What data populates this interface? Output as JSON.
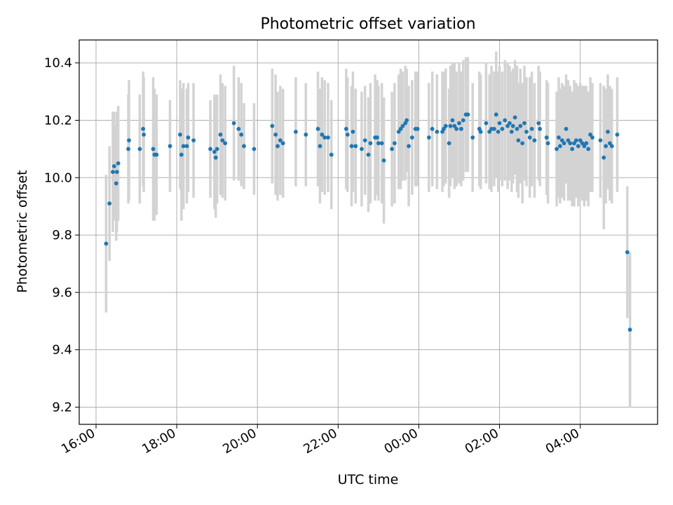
{
  "chart_data": {
    "type": "scatter",
    "title": "Photometric offset variation",
    "xlabel": "UTC time",
    "ylabel": "Photometric offset",
    "xlim": [
      "15:35",
      "05:55 (+1d)"
    ],
    "ylim": [
      9.14,
      10.48
    ],
    "grid": true,
    "xticks": [
      {
        "t": "16:00",
        "label": "16:00"
      },
      {
        "t": "18:00",
        "label": "18:00"
      },
      {
        "t": "20:00",
        "label": "20:00"
      },
      {
        "t": "22:00",
        "label": "22:00"
      },
      {
        "t": "00:00 (+1d)",
        "label": "00:00"
      },
      {
        "t": "02:00 (+1d)",
        "label": "02:00"
      },
      {
        "t": "04:00 (+1d)",
        "label": "04:00"
      }
    ],
    "yticks": [
      9.2,
      9.4,
      9.6,
      9.8,
      10.0,
      10.2,
      10.4
    ],
    "marker_color": "#1f77b4",
    "errorbar_color": "#d3d3d3",
    "points": [
      {
        "t": "16:15",
        "y": 9.77,
        "err": 0.24
      },
      {
        "t": "16:20",
        "y": 9.91,
        "err": 0.2
      },
      {
        "t": "16:25",
        "y": 10.02,
        "err": 0.21
      },
      {
        "t": "16:27",
        "y": 10.04,
        "err": 0.19
      },
      {
        "t": "16:30",
        "y": 9.98,
        "err": 0.2
      },
      {
        "t": "16:31",
        "y": 10.02,
        "err": 0.21
      },
      {
        "t": "16:33",
        "y": 10.05,
        "err": 0.2
      },
      {
        "t": "16:48",
        "y": 10.1,
        "err": 0.19
      },
      {
        "t": "16:49",
        "y": 10.13,
        "err": 0.21
      },
      {
        "t": "17:05",
        "y": 10.1,
        "err": 0.19
      },
      {
        "t": "17:10",
        "y": 10.17,
        "err": 0.2
      },
      {
        "t": "17:11",
        "y": 10.15,
        "err": 0.2
      },
      {
        "t": "17:25",
        "y": 10.1,
        "err": 0.25
      },
      {
        "t": "17:27",
        "y": 10.08,
        "err": 0.23
      },
      {
        "t": "17:30",
        "y": 10.08,
        "err": 0.21
      },
      {
        "t": "17:50",
        "y": 10.11,
        "err": 0.16
      },
      {
        "t": "18:05",
        "y": 10.15,
        "err": 0.19
      },
      {
        "t": "18:07",
        "y": 10.08,
        "err": 0.23
      },
      {
        "t": "18:10",
        "y": 10.11,
        "err": 0.22
      },
      {
        "t": "18:15",
        "y": 10.11,
        "err": 0.2
      },
      {
        "t": "18:17",
        "y": 10.14,
        "err": 0.19
      },
      {
        "t": "18:25",
        "y": 10.13,
        "err": 0.2
      },
      {
        "t": "18:50",
        "y": 10.1,
        "err": 0.17
      },
      {
        "t": "18:56",
        "y": 10.09,
        "err": 0.2
      },
      {
        "t": "18:58",
        "y": 10.07,
        "err": 0.21
      },
      {
        "t": "19:00",
        "y": 10.1,
        "err": 0.19
      },
      {
        "t": "19:05",
        "y": 10.15,
        "err": 0.21
      },
      {
        "t": "19:08",
        "y": 10.13,
        "err": 0.2
      },
      {
        "t": "19:12",
        "y": 10.12,
        "err": 0.2
      },
      {
        "t": "19:25",
        "y": 10.19,
        "err": 0.2
      },
      {
        "t": "19:32",
        "y": 10.17,
        "err": 0.18
      },
      {
        "t": "19:36",
        "y": 10.15,
        "err": 0.18
      },
      {
        "t": "19:40",
        "y": 10.11,
        "err": 0.15
      },
      {
        "t": "19:55",
        "y": 10.1,
        "err": 0.16
      },
      {
        "t": "20:22",
        "y": 10.18,
        "err": 0.2
      },
      {
        "t": "20:27",
        "y": 10.15,
        "err": 0.21
      },
      {
        "t": "20:30",
        "y": 10.11,
        "err": 0.19
      },
      {
        "t": "20:34",
        "y": 10.13,
        "err": 0.19
      },
      {
        "t": "20:38",
        "y": 10.12,
        "err": 0.19
      },
      {
        "t": "20:57",
        "y": 10.16,
        "err": 0.19
      },
      {
        "t": "21:12",
        "y": 10.15,
        "err": 0.18
      },
      {
        "t": "21:30",
        "y": 10.17,
        "err": 0.2
      },
      {
        "t": "21:33",
        "y": 10.11,
        "err": 0.2
      },
      {
        "t": "21:36",
        "y": 10.15,
        "err": 0.2
      },
      {
        "t": "21:40",
        "y": 10.14,
        "err": 0.2
      },
      {
        "t": "21:45",
        "y": 10.14,
        "err": 0.19
      },
      {
        "t": "21:50",
        "y": 10.08,
        "err": 0.19
      },
      {
        "t": "22:12",
        "y": 10.17,
        "err": 0.21
      },
      {
        "t": "22:14",
        "y": 10.15,
        "err": 0.2
      },
      {
        "t": "22:20",
        "y": 10.11,
        "err": 0.21
      },
      {
        "t": "22:22",
        "y": 10.16,
        "err": 0.21
      },
      {
        "t": "22:26",
        "y": 10.11,
        "err": 0.2
      },
      {
        "t": "22:35",
        "y": 10.1,
        "err": 0.2
      },
      {
        "t": "22:40",
        "y": 10.13,
        "err": 0.19
      },
      {
        "t": "22:45",
        "y": 10.08,
        "err": 0.2
      },
      {
        "t": "22:48",
        "y": 10.12,
        "err": 0.21
      },
      {
        "t": "22:55",
        "y": 10.14,
        "err": 0.22
      },
      {
        "t": "22:58",
        "y": 10.14,
        "err": 0.2
      },
      {
        "t": "23:00",
        "y": 10.12,
        "err": 0.2
      },
      {
        "t": "23:05",
        "y": 10.12,
        "err": 0.21
      },
      {
        "t": "23:08",
        "y": 10.06,
        "err": 0.22
      },
      {
        "t": "23:20",
        "y": 10.1,
        "err": 0.2
      },
      {
        "t": "23:24",
        "y": 10.12,
        "err": 0.21
      },
      {
        "t": "23:30",
        "y": 10.16,
        "err": 0.2
      },
      {
        "t": "23:33",
        "y": 10.17,
        "err": 0.21
      },
      {
        "t": "23:36",
        "y": 10.18,
        "err": 0.19
      },
      {
        "t": "23:40",
        "y": 10.19,
        "err": 0.2
      },
      {
        "t": "23:42",
        "y": 10.2,
        "err": 0.18
      },
      {
        "t": "23:45",
        "y": 10.11,
        "err": 0.21
      },
      {
        "t": "23:50",
        "y": 10.14,
        "err": 0.2
      },
      {
        "t": "23:55",
        "y": 10.17,
        "err": 0.2
      },
      {
        "t": "23:58",
        "y": 10.17,
        "err": 0.2
      },
      {
        "t": "00:15 (+1d)",
        "y": 10.14,
        "err": 0.19
      },
      {
        "t": "00:20 (+1d)",
        "y": 10.17,
        "err": 0.2
      },
      {
        "t": "00:27 (+1d)",
        "y": 10.16,
        "err": 0.2
      },
      {
        "t": "00:35 (+1d)",
        "y": 10.16,
        "err": 0.21
      },
      {
        "t": "00:37 (+1d)",
        "y": 10.17,
        "err": 0.2
      },
      {
        "t": "00:40 (+1d)",
        "y": 10.18,
        "err": 0.2
      },
      {
        "t": "00:45 (+1d)",
        "y": 10.12,
        "err": 0.19
      },
      {
        "t": "00:47 (+1d)",
        "y": 10.18,
        "err": 0.21
      },
      {
        "t": "00:50 (+1d)",
        "y": 10.2,
        "err": 0.2
      },
      {
        "t": "00:53 (+1d)",
        "y": 10.18,
        "err": 0.22
      },
      {
        "t": "00:56 (+1d)",
        "y": 10.17,
        "err": 0.2
      },
      {
        "t": "01:00 (+1d)",
        "y": 10.19,
        "err": 0.21
      },
      {
        "t": "01:03 (+1d)",
        "y": 10.17,
        "err": 0.2
      },
      {
        "t": "01:06 (+1d)",
        "y": 10.2,
        "err": 0.21
      },
      {
        "t": "01:10 (+1d)",
        "y": 10.22,
        "err": 0.2
      },
      {
        "t": "01:13 (+1d)",
        "y": 10.22,
        "err": 0.2
      },
      {
        "t": "01:20 (+1d)",
        "y": 10.14,
        "err": 0.19
      },
      {
        "t": "01:30 (+1d)",
        "y": 10.17,
        "err": 0.2
      },
      {
        "t": "01:32 (+1d)",
        "y": 10.16,
        "err": 0.2
      },
      {
        "t": "01:40 (+1d)",
        "y": 10.19,
        "err": 0.21
      },
      {
        "t": "01:45 (+1d)",
        "y": 10.16,
        "err": 0.2
      },
      {
        "t": "01:48 (+1d)",
        "y": 10.17,
        "err": 0.22
      },
      {
        "t": "01:52 (+1d)",
        "y": 10.17,
        "err": 0.2
      },
      {
        "t": "01:55 (+1d)",
        "y": 10.22,
        "err": 0.22
      },
      {
        "t": "01:58 (+1d)",
        "y": 10.16,
        "err": 0.21
      },
      {
        "t": "02:00 (+1d)",
        "y": 10.19,
        "err": 0.2
      },
      {
        "t": "02:04 (+1d)",
        "y": 10.17,
        "err": 0.2
      },
      {
        "t": "02:08 (+1d)",
        "y": 10.2,
        "err": 0.21
      },
      {
        "t": "02:12 (+1d)",
        "y": 10.18,
        "err": 0.22
      },
      {
        "t": "02:15 (+1d)",
        "y": 10.19,
        "err": 0.2
      },
      {
        "t": "02:18 (+1d)",
        "y": 10.16,
        "err": 0.21
      },
      {
        "t": "02:20 (+1d)",
        "y": 10.18,
        "err": 0.2
      },
      {
        "t": "02:23 (+1d)",
        "y": 10.21,
        "err": 0.2
      },
      {
        "t": "02:26 (+1d)",
        "y": 10.17,
        "err": 0.22
      },
      {
        "t": "02:28 (+1d)",
        "y": 10.13,
        "err": 0.2
      },
      {
        "t": "02:31 (+1d)",
        "y": 10.18,
        "err": 0.2
      },
      {
        "t": "02:34 (+1d)",
        "y": 10.12,
        "err": 0.21
      },
      {
        "t": "02:37 (+1d)",
        "y": 10.19,
        "err": 0.2
      },
      {
        "t": "02:40 (+1d)",
        "y": 10.16,
        "err": 0.19
      },
      {
        "t": "02:45 (+1d)",
        "y": 10.14,
        "err": 0.21
      },
      {
        "t": "02:48 (+1d)",
        "y": 10.17,
        "err": 0.2
      },
      {
        "t": "02:52 (+1d)",
        "y": 10.13,
        "err": 0.2
      },
      {
        "t": "02:58 (+1d)",
        "y": 10.19,
        "err": 0.2
      },
      {
        "t": "03:00 (+1d)",
        "y": 10.17,
        "err": 0.2
      },
      {
        "t": "03:10 (+1d)",
        "y": 10.14,
        "err": 0.2
      },
      {
        "t": "03:12 (+1d)",
        "y": 10.12,
        "err": 0.21
      },
      {
        "t": "03:25 (+1d)",
        "y": 10.1,
        "err": 0.2
      },
      {
        "t": "03:28 (+1d)",
        "y": 10.14,
        "err": 0.21
      },
      {
        "t": "03:30 (+1d)",
        "y": 10.11,
        "err": 0.2
      },
      {
        "t": "03:33 (+1d)",
        "y": 10.13,
        "err": 0.2
      },
      {
        "t": "03:36 (+1d)",
        "y": 10.12,
        "err": 0.2
      },
      {
        "t": "03:39 (+1d)",
        "y": 10.17,
        "err": 0.19
      },
      {
        "t": "03:42 (+1d)",
        "y": 10.13,
        "err": 0.21
      },
      {
        "t": "03:45 (+1d)",
        "y": 10.12,
        "err": 0.2
      },
      {
        "t": "03:48 (+1d)",
        "y": 10.1,
        "err": 0.2
      },
      {
        "t": "03:51 (+1d)",
        "y": 10.12,
        "err": 0.22
      },
      {
        "t": "03:54 (+1d)",
        "y": 10.13,
        "err": 0.2
      },
      {
        "t": "03:57 (+1d)",
        "y": 10.11,
        "err": 0.21
      },
      {
        "t": "04:00 (+1d)",
        "y": 10.13,
        "err": 0.2
      },
      {
        "t": "04:03 (+1d)",
        "y": 10.12,
        "err": 0.2
      },
      {
        "t": "04:06 (+1d)",
        "y": 10.11,
        "err": 0.21
      },
      {
        "t": "04:09 (+1d)",
        "y": 10.12,
        "err": 0.2
      },
      {
        "t": "04:12 (+1d)",
        "y": 10.1,
        "err": 0.2
      },
      {
        "t": "04:15 (+1d)",
        "y": 10.15,
        "err": 0.2
      },
      {
        "t": "04:18 (+1d)",
        "y": 10.14,
        "err": 0.19
      },
      {
        "t": "04:30 (+1d)",
        "y": 10.13,
        "err": 0.2
      },
      {
        "t": "04:35 (+1d)",
        "y": 10.07,
        "err": 0.25
      },
      {
        "t": "04:38 (+1d)",
        "y": 10.11,
        "err": 0.2
      },
      {
        "t": "04:41 (+1d)",
        "y": 10.16,
        "err": 0.2
      },
      {
        "t": "04:44 (+1d)",
        "y": 10.12,
        "err": 0.2
      },
      {
        "t": "04:47 (+1d)",
        "y": 10.11,
        "err": 0.2
      },
      {
        "t": "04:55 (+1d)",
        "y": 10.15,
        "err": 0.2
      },
      {
        "t": "05:10 (+1d)",
        "y": 9.74,
        "err": 0.23
      },
      {
        "t": "05:14 (+1d)",
        "y": 9.47,
        "err": 0.27
      }
    ]
  }
}
